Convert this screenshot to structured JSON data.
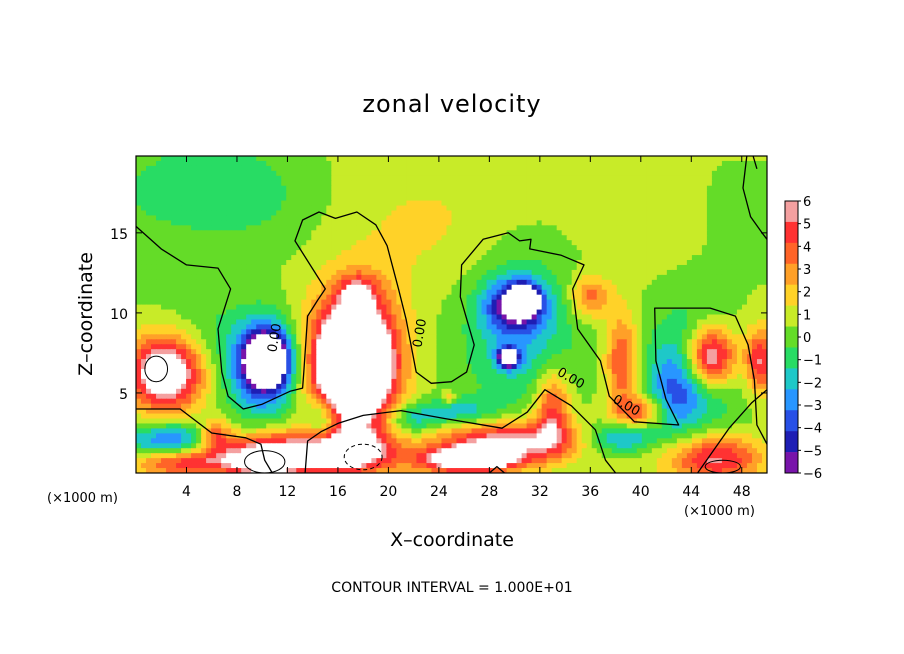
{
  "chart_data": {
    "type": "heatmap",
    "title": "zonal velocity",
    "xlabel": "X–coordinate",
    "ylabel": "Z–coordinate",
    "x_units": "(×1000 m)",
    "x_units_right": "(×1000 m)",
    "xlim": [
      0,
      50
    ],
    "ylim": [
      0,
      19.8
    ],
    "x_ticks": [
      4,
      8,
      12,
      16,
      20,
      24,
      28,
      32,
      36,
      40,
      44,
      48
    ],
    "y_ticks": [
      5,
      10,
      15
    ],
    "x_tick_labels": [
      "4",
      "8",
      "12",
      "16",
      "20",
      "24",
      "28",
      "32",
      "36",
      "40",
      "44",
      "48"
    ],
    "y_tick_labels": [
      "5",
      "10",
      "15"
    ],
    "colorbar": {
      "min": -6,
      "max": 6,
      "ticks": [
        6,
        5,
        4,
        3,
        2,
        1,
        0,
        -1,
        -2,
        -3,
        -4,
        -5,
        -6
      ],
      "tick_labels": [
        "6",
        "5",
        "4",
        "3",
        "2",
        "1",
        "0",
        "−1",
        "−2",
        "−3",
        "−4",
        "−5",
        "−6"
      ],
      "colors": [
        "#f4a0a0",
        "#ff3232",
        "#ff6428",
        "#ffa028",
        "#ffd228",
        "#c8eb28",
        "#64dc28",
        "#28dc64",
        "#1ec8c8",
        "#2896ff",
        "#2850e6",
        "#1e1eb4",
        "#7814aa"
      ]
    },
    "contour_labels": [
      {
        "text": "0.00",
        "x": 11.3,
        "y": 8.4
      },
      {
        "text": "0.00",
        "x": 22.8,
        "y": 8.7
      },
      {
        "text": "0.00",
        "x": 34.3,
        "y": 5.7
      },
      {
        "text": "0.00",
        "x": 38.7,
        "y": 4.0
      }
    ],
    "blobs": [
      {
        "x": 24,
        "y": 15.5,
        "rx": 12,
        "ry": 5,
        "v": 0.9
      },
      {
        "x": 6,
        "y": 17.5,
        "rx": 7,
        "ry": 3.2,
        "v": -2.2
      },
      {
        "x": 6,
        "y": 7.2,
        "rx": 5.5,
        "ry": 3.2,
        "v": -1.8
      },
      {
        "x": 2.5,
        "y": 6.3,
        "rx": 3.2,
        "ry": 2.4,
        "v": 9
      },
      {
        "x": 2.7,
        "y": 2.0,
        "rx": 3.6,
        "ry": 1.1,
        "v": -4.5
      },
      {
        "x": 3.8,
        "y": 0.7,
        "rx": 4.2,
        "ry": 0.9,
        "v": 4.8
      },
      {
        "x": 6.3,
        "y": 2.3,
        "rx": 1.3,
        "ry": 1.0,
        "v": 4.5
      },
      {
        "x": 10.2,
        "y": 6.6,
        "rx": 2.5,
        "ry": 3.0,
        "v": -4.8
      },
      {
        "x": 10.4,
        "y": 7.1,
        "rx": 1.6,
        "ry": 1.6,
        "v": -9
      },
      {
        "x": 10.5,
        "y": 1.0,
        "rx": 3.5,
        "ry": 1.4,
        "v": 8
      },
      {
        "x": 17.5,
        "y": 7.0,
        "rx": 3.6,
        "ry": 4.5,
        "v": 6
      },
      {
        "x": 17.2,
        "y": 6.8,
        "rx": 2.8,
        "ry": 3.2,
        "v": 9
      },
      {
        "x": 17.6,
        "y": 11.3,
        "rx": 1.5,
        "ry": 1.1,
        "v": 3.2
      },
      {
        "x": 16.5,
        "y": 1.3,
        "rx": 3.8,
        "ry": 1.4,
        "v": 7
      },
      {
        "x": 14.8,
        "y": 3.3,
        "rx": 1.3,
        "ry": 1.4,
        "v": -3
      },
      {
        "x": 21.8,
        "y": 3.3,
        "rx": 2.0,
        "ry": 1.0,
        "v": -2.8
      },
      {
        "x": 25.5,
        "y": 3.8,
        "rx": 3.0,
        "ry": 0.9,
        "v": -2.8
      },
      {
        "x": 30.5,
        "y": 9.0,
        "rx": 4.2,
        "ry": 4.5,
        "v": -3.3
      },
      {
        "x": 30.0,
        "y": 10.5,
        "rx": 2.2,
        "ry": 1.5,
        "v": -5.5
      },
      {
        "x": 30.8,
        "y": 10.8,
        "rx": 1.0,
        "ry": 0.8,
        "v": -9
      },
      {
        "x": 29.5,
        "y": 7.2,
        "rx": 0.8,
        "ry": 0.6,
        "v": -9
      },
      {
        "x": 29.5,
        "y": 2.0,
        "rx": 5.5,
        "ry": 1.3,
        "v": 6
      },
      {
        "x": 33.0,
        "y": 4.0,
        "rx": 1.4,
        "ry": 2.5,
        "v": 4.5
      },
      {
        "x": 26.5,
        "y": 0.8,
        "rx": 4.0,
        "ry": 0.8,
        "v": 8
      },
      {
        "x": 24.8,
        "y": 4.7,
        "rx": 0.5,
        "ry": 0.4,
        "v": 2.8
      },
      {
        "x": 36.0,
        "y": 11.0,
        "rx": 1.6,
        "ry": 1.3,
        "v": 3.5
      },
      {
        "x": 38.5,
        "y": 7.0,
        "rx": 1.3,
        "ry": 3.0,
        "v": 4.3
      },
      {
        "x": 40.0,
        "y": 3.8,
        "rx": 2.0,
        "ry": 1.0,
        "v": 4.0
      },
      {
        "x": 38.5,
        "y": 2.2,
        "rx": 2.5,
        "ry": 1.0,
        "v": -3.8
      },
      {
        "x": 44.5,
        "y": 6.5,
        "rx": 3.2,
        "ry": 3.5,
        "v": -4.2
      },
      {
        "x": 45.5,
        "y": 7.2,
        "rx": 2.0,
        "ry": 2.0,
        "v": 9
      },
      {
        "x": 46.0,
        "y": 0.9,
        "rx": 3.8,
        "ry": 1.5,
        "v": 5.5
      },
      {
        "x": 49.5,
        "y": 7.0,
        "rx": 1.2,
        "ry": 2.0,
        "v": 5
      },
      {
        "x": 42.5,
        "y": 4.5,
        "rx": 2.0,
        "ry": 2.5,
        "v": -2.5
      }
    ],
    "zero_contours": [
      [
        [
          0,
          15.4
        ],
        [
          2,
          14.0
        ],
        [
          4,
          13.0
        ],
        [
          6.5,
          12.8
        ],
        [
          7.5,
          11.5
        ],
        [
          6.5,
          9.0
        ],
        [
          6.8,
          6.3
        ],
        [
          7.3,
          4.8
        ],
        [
          8.5,
          4.0
        ],
        [
          10,
          4.3
        ],
        [
          12.2,
          5.1
        ],
        [
          13.2,
          5.3
        ],
        [
          13.3,
          6.3
        ],
        [
          13.6,
          9.8
        ],
        [
          14.4,
          10.8
        ],
        [
          15.0,
          11.5
        ],
        [
          12.6,
          14.5
        ],
        [
          13.2,
          15.8
        ],
        [
          14.5,
          16.3
        ],
        [
          15.8,
          15.9
        ],
        [
          17.5,
          16.3
        ],
        [
          19.0,
          15.5
        ],
        [
          19.9,
          14.2
        ],
        [
          20.8,
          11.5
        ],
        [
          21.4,
          9.6
        ],
        [
          22.2,
          6.3
        ],
        [
          23.4,
          5.6
        ],
        [
          25.0,
          5.7
        ],
        [
          26.2,
          6.3
        ],
        [
          26.8,
          8.0
        ],
        [
          25.7,
          11.0
        ],
        [
          25.8,
          13.0
        ],
        [
          27.5,
          14.6
        ],
        [
          29.5,
          15.0
        ],
        [
          30.4,
          14.5
        ],
        [
          31.3,
          14.6
        ],
        [
          31.2,
          14.0
        ],
        [
          33.7,
          13.6
        ],
        [
          35.5,
          13.0
        ],
        [
          34.6,
          11.5
        ],
        [
          35.0,
          9.0
        ],
        [
          36.8,
          7.0
        ],
        [
          37.5,
          4.8
        ],
        [
          39.5,
          3.2
        ],
        [
          43.0,
          3.0
        ],
        [
          42.0,
          4.6
        ],
        [
          41.2,
          7.0
        ],
        [
          41.1,
          10.3
        ],
        [
          45.5,
          10.3
        ],
        [
          47.5,
          9.8
        ],
        [
          48.5,
          8.0
        ],
        [
          49.0,
          5.8
        ],
        [
          49.2,
          3.0
        ],
        [
          50,
          1.8
        ]
      ],
      [
        [
          0,
          4.0
        ],
        [
          3.5,
          4.0
        ],
        [
          6,
          2.5
        ],
        [
          8.7,
          2.2
        ],
        [
          9.9,
          1.8
        ],
        [
          10.2,
          0.8
        ],
        [
          10.8,
          0
        ]
      ],
      [
        [
          13.4,
          0
        ],
        [
          13.6,
          2.0
        ],
        [
          14.7,
          2.6
        ],
        [
          16,
          3.1
        ],
        [
          18,
          3.6
        ],
        [
          21.0,
          3.9
        ],
        [
          24.5,
          3.4
        ],
        [
          29.0,
          2.8
        ],
        [
          31.0,
          3.8
        ],
        [
          32.4,
          5.2
        ],
        [
          34.5,
          4.2
        ],
        [
          36.4,
          2.7
        ],
        [
          37.2,
          0.8
        ],
        [
          38,
          0
        ]
      ],
      [
        [
          44.5,
          0
        ],
        [
          47.0,
          2.8
        ],
        [
          48.8,
          4.4
        ],
        [
          50,
          5.2
        ]
      ],
      [
        [
          48.4,
          19.8
        ],
        [
          48.1,
          17.8
        ],
        [
          48.7,
          16.0
        ],
        [
          49.6,
          15.0
        ],
        [
          50,
          14.6
        ]
      ],
      [
        [
          48.9,
          19.8
        ],
        [
          49.2,
          19.0
        ]
      ],
      [
        [
          28.0,
          0
        ],
        [
          28.6,
          0.4
        ],
        [
          29.2,
          0
        ]
      ]
    ],
    "closed_contours": [
      {
        "x": 1.6,
        "y": 6.5,
        "rx": 0.9,
        "ry": 0.8,
        "dashed": false
      },
      {
        "x": 10.2,
        "y": 0.7,
        "rx": 1.6,
        "ry": 0.7,
        "dashed": false
      },
      {
        "x": 18.0,
        "y": 1.0,
        "rx": 1.5,
        "ry": 0.8,
        "dashed": true
      },
      {
        "x": 46.5,
        "y": 0.4,
        "rx": 1.4,
        "ry": 0.4,
        "dashed": false
      }
    ],
    "note": "CONTOUR INTERVAL = 1.000E+01"
  }
}
